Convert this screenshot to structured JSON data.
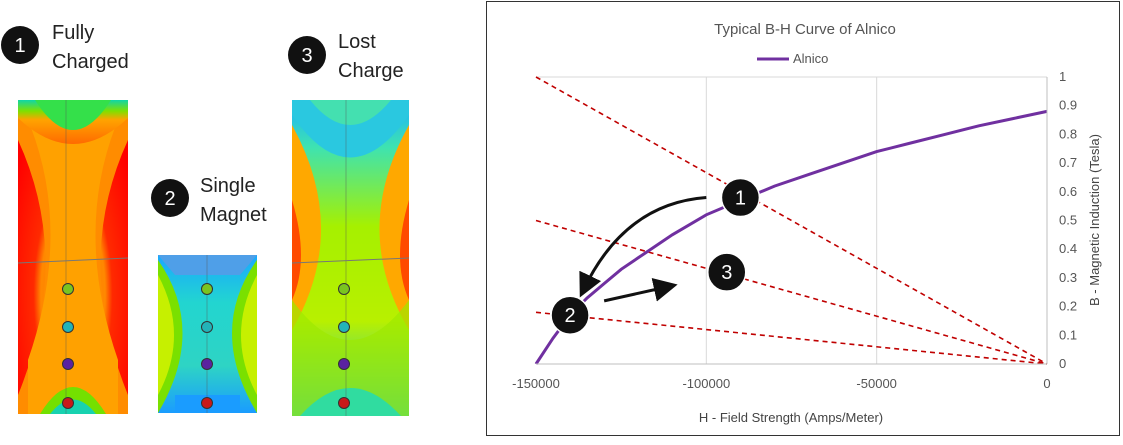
{
  "magnets": [
    {
      "number": "1",
      "label_line1": "Fully",
      "label_line2": "Charged"
    },
    {
      "number": "2",
      "label_line1": "Single",
      "label_line2": "Magnet"
    },
    {
      "number": "3",
      "label_line1": "Lost",
      "label_line2": "Charge"
    }
  ],
  "colors": {
    "curve": "#7030a0",
    "load_lines": "#c00000",
    "badge": "#111111",
    "arrow": "#111111"
  },
  "chart_data": {
    "type": "line",
    "title": "Typical B-H Curve of Alnico",
    "xlabel": "H - Field Strength (Amps/Meter)",
    "ylabel": "B - Magnetic Induction (Tesla)",
    "xlim": [
      -150000,
      0
    ],
    "ylim": [
      0,
      1
    ],
    "x_ticks": [
      "-150000",
      "-100000",
      "-50000",
      "0"
    ],
    "y_ticks": [
      "0",
      "0.1",
      "0.2",
      "0.3",
      "0.4",
      "0.5",
      "0.6",
      "0.7",
      "0.8",
      "0.9",
      "1"
    ],
    "grid": true,
    "legend_position": "top",
    "series": [
      {
        "name": "Alnico",
        "x": [
          -150000,
          -145000,
          -140000,
          -135000,
          -130000,
          -125000,
          -120000,
          -110000,
          -100000,
          -90000,
          -80000,
          -70000,
          -60000,
          -50000,
          -40000,
          -30000,
          -20000,
          -10000,
          0
        ],
        "y": [
          0,
          0.09,
          0.17,
          0.23,
          0.28,
          0.33,
          0.37,
          0.45,
          0.52,
          0.57,
          0.62,
          0.66,
          0.7,
          0.74,
          0.77,
          0.8,
          0.83,
          0.855,
          0.88
        ]
      }
    ],
    "load_lines": [
      {
        "x": [
          -150000,
          0
        ],
        "y": [
          1.0,
          0
        ]
      },
      {
        "x": [
          -150000,
          0
        ],
        "y": [
          0.5,
          0
        ]
      },
      {
        "x": [
          -150000,
          0
        ],
        "y": [
          0.18,
          0
        ]
      }
    ],
    "annotations": [
      {
        "label": "1",
        "x": -90000,
        "y": 0.58
      },
      {
        "label": "2",
        "x": -140000,
        "y": 0.17
      },
      {
        "label": "3",
        "x": -94000,
        "y": 0.32
      }
    ],
    "arrows": [
      {
        "from": [
          -100000,
          0.58
        ],
        "to": [
          -136000,
          0.26
        ]
      },
      {
        "from": [
          -130000,
          0.22
        ],
        "to": [
          -111000,
          0.27
        ]
      }
    ]
  }
}
